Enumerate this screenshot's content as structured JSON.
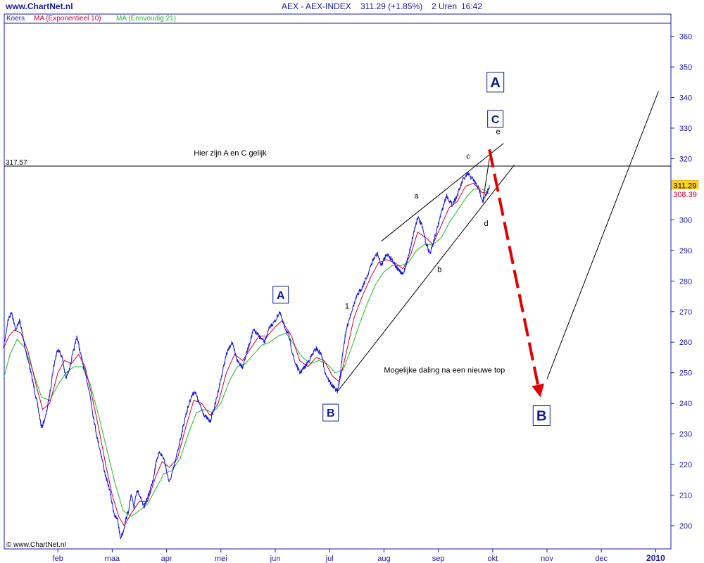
{
  "header": {
    "site": "www.ChartNet.nl",
    "instrument": "AEX - AEX-INDEX",
    "last_price": "311.29 (+1.85%)",
    "interval": "2 Uren",
    "time": "16:42"
  },
  "legend": [
    {
      "label": "Koers",
      "color": "#1a1aa8"
    },
    {
      "label": "MA (Exponentieel 10)",
      "color": "#cc0033"
    },
    {
      "label": "MA (Eenvoudig 21)",
      "color": "#22bb22"
    }
  ],
  "copyright": "© www.ChartNet.nl",
  "colors": {
    "price": "#1010e0",
    "ema10": "#cc0033",
    "sma21": "#22bb22",
    "axis": "#1a1aa8",
    "forecast_arrow": "#e00000",
    "wave_label": "#0b1a8c"
  },
  "chart_data": {
    "type": "line",
    "title": "AEX - AEX-INDEX",
    "xlabel": "",
    "ylabel": "",
    "ylim": [
      192,
      366
    ],
    "y_ticks": [
      200,
      210,
      220,
      230,
      240,
      250,
      260,
      270,
      280,
      290,
      300,
      310,
      320,
      330,
      340,
      350,
      360
    ],
    "x_range": [
      0.0,
      12.0
    ],
    "x_ticks": [
      {
        "label": "feb",
        "x": 1.0
      },
      {
        "label": "maa",
        "x": 2.0
      },
      {
        "label": "apr",
        "x": 3.0
      },
      {
        "label": "mei",
        "x": 4.0
      },
      {
        "label": "jun",
        "x": 5.0
      },
      {
        "label": "jul",
        "x": 6.0
      },
      {
        "label": "aug",
        "x": 7.0
      },
      {
        "label": "sep",
        "x": 8.0
      },
      {
        "label": "okt",
        "x": 9.0
      },
      {
        "label": "nov",
        "x": 10.0
      },
      {
        "label": "dec",
        "x": 11.0
      },
      {
        "label": "2010",
        "x": 12.0,
        "bold": true
      }
    ],
    "grid": false,
    "series": [
      {
        "name": "Koers",
        "kind": "price",
        "points": [
          [
            0.0,
            258
          ],
          [
            0.08,
            267
          ],
          [
            0.15,
            270
          ],
          [
            0.22,
            264
          ],
          [
            0.3,
            267
          ],
          [
            0.4,
            258
          ],
          [
            0.48,
            252
          ],
          [
            0.55,
            246
          ],
          [
            0.62,
            240
          ],
          [
            0.7,
            232
          ],
          [
            0.78,
            236
          ],
          [
            0.85,
            243
          ],
          [
            0.92,
            252
          ],
          [
            1.0,
            258
          ],
          [
            1.08,
            255
          ],
          [
            1.15,
            248
          ],
          [
            1.22,
            252
          ],
          [
            1.3,
            258
          ],
          [
            1.35,
            262
          ],
          [
            1.42,
            256
          ],
          [
            1.5,
            250
          ],
          [
            1.58,
            244
          ],
          [
            1.65,
            236
          ],
          [
            1.72,
            229
          ],
          [
            1.8,
            223
          ],
          [
            1.88,
            216
          ],
          [
            1.95,
            212
          ],
          [
            2.0,
            207
          ],
          [
            2.05,
            203
          ],
          [
            2.1,
            202
          ],
          [
            2.15,
            196
          ],
          [
            2.2,
            198
          ],
          [
            2.25,
            202
          ],
          [
            2.3,
            205
          ],
          [
            2.35,
            210
          ],
          [
            2.4,
            206
          ],
          [
            2.45,
            212
          ],
          [
            2.5,
            210
          ],
          [
            2.58,
            206
          ],
          [
            2.65,
            209
          ],
          [
            2.75,
            215
          ],
          [
            2.82,
            222
          ],
          [
            2.88,
            224
          ],
          [
            2.95,
            222
          ],
          [
            3.0,
            218
          ],
          [
            3.05,
            214
          ],
          [
            3.15,
            220
          ],
          [
            3.25,
            228
          ],
          [
            3.35,
            236
          ],
          [
            3.45,
            242
          ],
          [
            3.52,
            244
          ],
          [
            3.6,
            240
          ],
          [
            3.7,
            236
          ],
          [
            3.8,
            234
          ],
          [
            3.9,
            240
          ],
          [
            4.0,
            248
          ],
          [
            4.1,
            256
          ],
          [
            4.2,
            260
          ],
          [
            4.3,
            254
          ],
          [
            4.4,
            252
          ],
          [
            4.5,
            258
          ],
          [
            4.6,
            264
          ],
          [
            4.7,
            262
          ],
          [
            4.8,
            260
          ],
          [
            4.9,
            265
          ],
          [
            5.0,
            267
          ],
          [
            5.08,
            270
          ],
          [
            5.15,
            266
          ],
          [
            5.25,
            262
          ],
          [
            5.35,
            254
          ],
          [
            5.45,
            250
          ],
          [
            5.55,
            252
          ],
          [
            5.65,
            255
          ],
          [
            5.75,
            258
          ],
          [
            5.85,
            256
          ],
          [
            5.92,
            250
          ],
          [
            6.0,
            247
          ],
          [
            6.08,
            245
          ],
          [
            6.15,
            244
          ],
          [
            6.2,
            250
          ],
          [
            6.25,
            258
          ],
          [
            6.32,
            265
          ],
          [
            6.4,
            270
          ],
          [
            6.5,
            275
          ],
          [
            6.6,
            278
          ],
          [
            6.7,
            282
          ],
          [
            6.8,
            287
          ],
          [
            6.88,
            289
          ],
          [
            6.95,
            285
          ],
          [
            7.05,
            289
          ],
          [
            7.15,
            287
          ],
          [
            7.25,
            284
          ],
          [
            7.35,
            282
          ],
          [
            7.45,
            288
          ],
          [
            7.55,
            296
          ],
          [
            7.62,
            301
          ],
          [
            7.7,
            298
          ],
          [
            7.78,
            292
          ],
          [
            7.85,
            289
          ],
          [
            7.95,
            295
          ],
          [
            8.05,
            302
          ],
          [
            8.15,
            308
          ],
          [
            8.25,
            305
          ],
          [
            8.35,
            308
          ],
          [
            8.45,
            313
          ],
          [
            8.55,
            315
          ],
          [
            8.65,
            313
          ],
          [
            8.75,
            310
          ],
          [
            8.82,
            306
          ],
          [
            8.88,
            308
          ],
          [
            8.94,
            311.29
          ]
        ]
      },
      {
        "name": "MA (Exponentieel 10)",
        "kind": "ema10",
        "points": [
          [
            0.0,
            258
          ],
          [
            0.1,
            262
          ],
          [
            0.2,
            264
          ],
          [
            0.32,
            263
          ],
          [
            0.45,
            257
          ],
          [
            0.6,
            246
          ],
          [
            0.72,
            238
          ],
          [
            0.85,
            240
          ],
          [
            1.0,
            250
          ],
          [
            1.12,
            254
          ],
          [
            1.25,
            253
          ],
          [
            1.38,
            256
          ],
          [
            1.5,
            252
          ],
          [
            1.62,
            243
          ],
          [
            1.75,
            232
          ],
          [
            1.88,
            220
          ],
          [
            2.0,
            210
          ],
          [
            2.12,
            203
          ],
          [
            2.22,
            200
          ],
          [
            2.35,
            204
          ],
          [
            2.5,
            208
          ],
          [
            2.65,
            208
          ],
          [
            2.8,
            216
          ],
          [
            2.92,
            221
          ],
          [
            3.05,
            219
          ],
          [
            3.2,
            222
          ],
          [
            3.35,
            232
          ],
          [
            3.5,
            241
          ],
          [
            3.65,
            240
          ],
          [
            3.8,
            236
          ],
          [
            3.95,
            240
          ],
          [
            4.1,
            250
          ],
          [
            4.25,
            256
          ],
          [
            4.4,
            254
          ],
          [
            4.55,
            258
          ],
          [
            4.7,
            262
          ],
          [
            4.85,
            262
          ],
          [
            5.0,
            265
          ],
          [
            5.12,
            267
          ],
          [
            5.3,
            262
          ],
          [
            5.45,
            254
          ],
          [
            5.6,
            252
          ],
          [
            5.75,
            255
          ],
          [
            5.9,
            254
          ],
          [
            6.05,
            249
          ],
          [
            6.18,
            247
          ],
          [
            6.3,
            256
          ],
          [
            6.45,
            268
          ],
          [
            6.6,
            275
          ],
          [
            6.75,
            281
          ],
          [
            6.9,
            286
          ],
          [
            7.05,
            287
          ],
          [
            7.2,
            286
          ],
          [
            7.35,
            284
          ],
          [
            7.5,
            289
          ],
          [
            7.62,
            296
          ],
          [
            7.78,
            294
          ],
          [
            7.9,
            292
          ],
          [
            8.05,
            298
          ],
          [
            8.2,
            304
          ],
          [
            8.35,
            306
          ],
          [
            8.5,
            311
          ],
          [
            8.65,
            312
          ],
          [
            8.8,
            309
          ],
          [
            8.94,
            308.6
          ]
        ]
      },
      {
        "name": "MA (Eenvoudig 21)",
        "kind": "sma21",
        "points": [
          [
            0.0,
            248
          ],
          [
            0.12,
            256
          ],
          [
            0.25,
            261
          ],
          [
            0.4,
            258
          ],
          [
            0.55,
            250
          ],
          [
            0.7,
            242
          ],
          [
            0.85,
            241
          ],
          [
            1.0,
            246
          ],
          [
            1.15,
            250
          ],
          [
            1.3,
            252
          ],
          [
            1.45,
            252
          ],
          [
            1.6,
            246
          ],
          [
            1.75,
            236
          ],
          [
            1.9,
            225
          ],
          [
            2.05,
            214
          ],
          [
            2.2,
            205
          ],
          [
            2.35,
            203
          ],
          [
            2.5,
            205
          ],
          [
            2.65,
            207
          ],
          [
            2.8,
            212
          ],
          [
            2.95,
            217
          ],
          [
            3.1,
            218
          ],
          [
            3.25,
            222
          ],
          [
            3.4,
            230
          ],
          [
            3.55,
            237
          ],
          [
            3.7,
            238
          ],
          [
            3.85,
            237
          ],
          [
            4.0,
            240
          ],
          [
            4.15,
            247
          ],
          [
            4.3,
            252
          ],
          [
            4.45,
            253
          ],
          [
            4.6,
            256
          ],
          [
            4.75,
            259
          ],
          [
            4.9,
            260
          ],
          [
            5.05,
            262
          ],
          [
            5.2,
            263
          ],
          [
            5.35,
            259
          ],
          [
            5.5,
            255
          ],
          [
            5.65,
            253
          ],
          [
            5.8,
            254
          ],
          [
            5.95,
            253
          ],
          [
            6.1,
            250
          ],
          [
            6.25,
            251
          ],
          [
            6.4,
            258
          ],
          [
            6.55,
            266
          ],
          [
            6.7,
            273
          ],
          [
            6.85,
            279
          ],
          [
            7.0,
            283
          ],
          [
            7.15,
            285
          ],
          [
            7.3,
            285
          ],
          [
            7.45,
            286
          ],
          [
            7.6,
            290
          ],
          [
            7.75,
            292
          ],
          [
            7.9,
            292
          ],
          [
            8.05,
            294
          ],
          [
            8.2,
            299
          ],
          [
            8.35,
            303
          ],
          [
            8.5,
            307
          ],
          [
            8.65,
            310
          ],
          [
            8.8,
            310
          ],
          [
            8.94,
            309
          ]
        ]
      }
    ],
    "last_values": {
      "close": "311.29",
      "ma": "308.39"
    },
    "horizontal_line": {
      "y": 317.57,
      "label": "317.57"
    },
    "trendlines": [
      {
        "from": [
          6.15,
          244
        ],
        "to": [
          9.4,
          318
        ]
      },
      {
        "from": [
          6.95,
          293
        ],
        "to": [
          9.2,
          325
        ]
      },
      {
        "from": [
          8.82,
          306
        ],
        "to": [
          8.94,
          320
        ]
      },
      {
        "from": [
          10.0,
          248
        ],
        "to": [
          12.05,
          342
        ]
      }
    ],
    "forecast_arrow": {
      "from": [
        8.94,
        323
      ],
      "to": [
        9.88,
        242
      ]
    },
    "annotations": [
      {
        "text": "Hier zijn A en C gelijk",
        "x": 3.5,
        "y": 321
      },
      {
        "text": "Mogelijke daling na een nieuwe top",
        "x": 7.0,
        "y": 250
      }
    ],
    "wave_labels": [
      {
        "text": "A",
        "x": 5.1,
        "y": 275.5,
        "boxed": true,
        "size": "medium"
      },
      {
        "text": "B",
        "x": 6.02,
        "y": 237,
        "boxed": true,
        "size": "medium"
      },
      {
        "text": "A",
        "x": 9.05,
        "y": 345,
        "boxed": true,
        "size": "large"
      },
      {
        "text": "C",
        "x": 9.05,
        "y": 333,
        "boxed": true,
        "size": "medium"
      },
      {
        "text": "B",
        "x": 9.9,
        "y": 236,
        "boxed": true,
        "size": "large"
      },
      {
        "text": "1",
        "x": 6.32,
        "y": 271,
        "boxed": false
      },
      {
        "text": "a",
        "x": 7.6,
        "y": 307,
        "boxed": false
      },
      {
        "text": "b",
        "x": 8.02,
        "y": 283,
        "boxed": false
      },
      {
        "text": "c",
        "x": 8.55,
        "y": 320,
        "boxed": false
      },
      {
        "text": "d",
        "x": 8.88,
        "y": 298,
        "boxed": false
      },
      {
        "text": "e",
        "x": 9.1,
        "y": 328,
        "boxed": false
      }
    ]
  }
}
